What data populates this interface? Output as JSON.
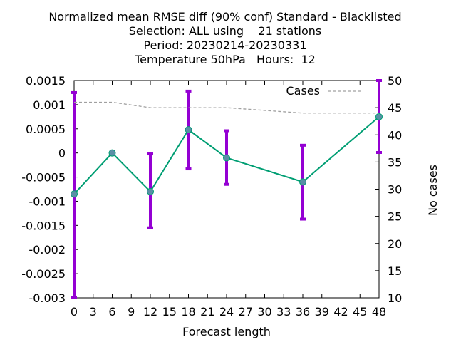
{
  "title_lines": [
    "Normalized mean RMSE diff (90% conf) Standard - Blacklisted",
    "Selection: ALL using    21 stations",
    "Period: 20230214-20230331",
    "Temperature 50hPa   Hours:  12"
  ],
  "chart_data": {
    "type": "line",
    "xlabel": "Forecast length",
    "ylabel": "",
    "y2label": "No cases",
    "xlim": [
      0,
      48
    ],
    "ylim": [
      -0.003,
      0.0015
    ],
    "y2lim": [
      10,
      50
    ],
    "x_ticks": [
      "0",
      "3",
      "6",
      "9",
      "12",
      "15",
      "18",
      "21",
      "24",
      "27",
      "30",
      "33",
      "36",
      "39",
      "42",
      "45",
      "48"
    ],
    "y_ticks": [
      "-0.003",
      "-0.0025",
      "-0.002",
      "-0.0015",
      "-0.001",
      "-0.0005",
      "0",
      "0.0005",
      "0.001",
      "0.0015"
    ],
    "y2_ticks": [
      "10",
      "15",
      "20",
      "25",
      "30",
      "35",
      "40",
      "45",
      "50"
    ],
    "legend_position": "top-right",
    "series": [
      {
        "name": "",
        "axis": "left",
        "color": "#009e73",
        "marker_color": "#5a8fa6",
        "x": [
          0,
          6,
          12,
          18,
          24,
          36,
          48
        ],
        "values": [
          -0.00085,
          0.0,
          -0.0008,
          0.00048,
          -0.0001,
          -0.0006,
          0.00075
        ],
        "error_low": [
          -0.003,
          0.0,
          -0.00155,
          -0.00033,
          -0.00065,
          -0.00137,
          1e-05
        ],
        "error_high": [
          0.00125,
          0.0,
          -2e-05,
          0.00128,
          0.00046,
          0.00016,
          0.0015
        ],
        "error_color": "#9400d3"
      },
      {
        "name": "Cases",
        "axis": "right",
        "color": "#a0a0a0",
        "dashed": true,
        "x": [
          0,
          6,
          12,
          18,
          24,
          30,
          36,
          42,
          48
        ],
        "values": [
          46,
          46,
          45,
          45,
          45,
          44.5,
          44,
          44,
          44
        ]
      }
    ]
  }
}
